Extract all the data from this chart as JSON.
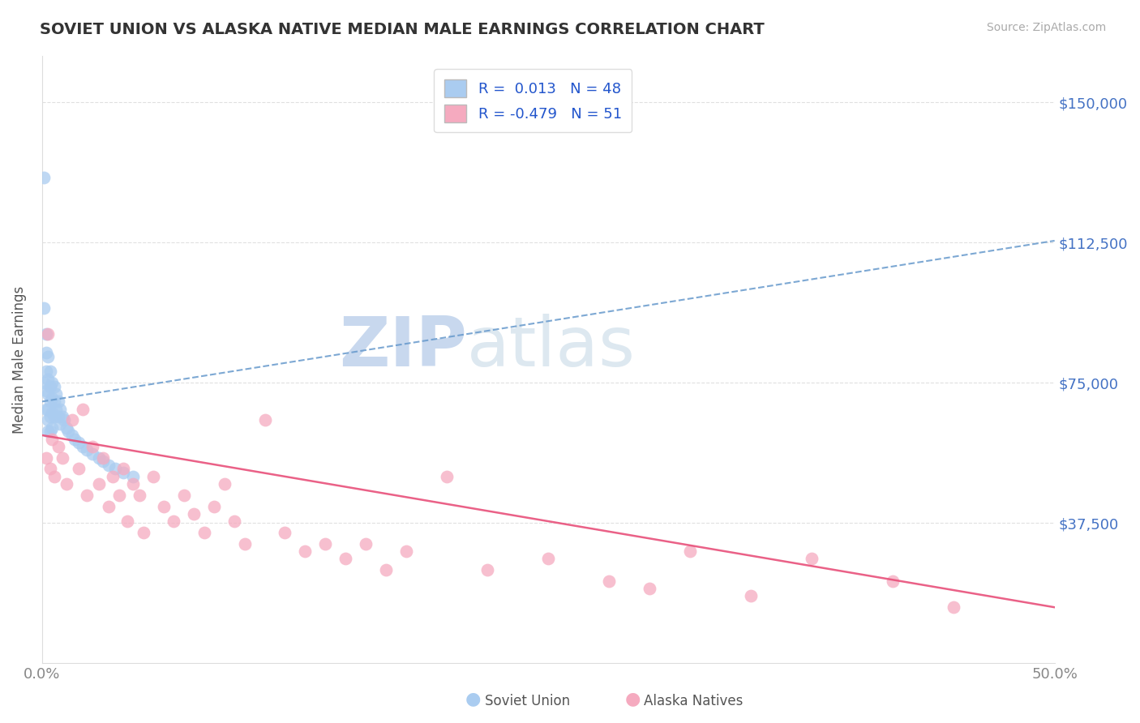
{
  "title": "SOVIET UNION VS ALASKA NATIVE MEDIAN MALE EARNINGS CORRELATION CHART",
  "source": "Source: ZipAtlas.com",
  "ylabel": "Median Male Earnings",
  "xlim": [
    0.0,
    0.5
  ],
  "ylim": [
    0,
    162500
  ],
  "ytick_labels": [
    "$37,500",
    "$75,000",
    "$112,500",
    "$150,000"
  ],
  "ytick_values": [
    37500,
    75000,
    112500,
    150000
  ],
  "r_soviet": 0.013,
  "n_soviet": 48,
  "r_alaska": -0.479,
  "n_alaska": 51,
  "background_color": "#ffffff",
  "grid_color": "#cccccc",
  "scatter_blue_color": "#aaccf0",
  "scatter_pink_color": "#f5aabf",
  "line_blue_color": "#6699cc",
  "line_pink_color": "#e8507a",
  "watermark_color": "#dde8f5",
  "title_color": "#333333",
  "axis_label_color": "#555555",
  "tick_label_color": "#888888",
  "right_tick_color": "#4472c4",
  "soviet_points_x": [
    0.001,
    0.001,
    0.001,
    0.002,
    0.002,
    0.002,
    0.002,
    0.002,
    0.003,
    0.003,
    0.003,
    0.003,
    0.003,
    0.003,
    0.004,
    0.004,
    0.004,
    0.004,
    0.004,
    0.005,
    0.005,
    0.005,
    0.005,
    0.006,
    0.006,
    0.006,
    0.007,
    0.007,
    0.008,
    0.008,
    0.009,
    0.009,
    0.01,
    0.011,
    0.012,
    0.013,
    0.015,
    0.016,
    0.018,
    0.02,
    0.022,
    0.025,
    0.028,
    0.03,
    0.033,
    0.036,
    0.04,
    0.045
  ],
  "soviet_points_y": [
    130000,
    95000,
    75000,
    88000,
    83000,
    78000,
    73000,
    68000,
    82000,
    76000,
    72000,
    68000,
    65000,
    62000,
    78000,
    74000,
    70000,
    66000,
    62000,
    75000,
    71000,
    67000,
    63000,
    74000,
    70000,
    66000,
    72000,
    68000,
    70000,
    66000,
    68000,
    64000,
    66000,
    65000,
    63000,
    62000,
    61000,
    60000,
    59000,
    58000,
    57000,
    56000,
    55000,
    54000,
    53000,
    52000,
    51000,
    50000
  ],
  "alaska_points_x": [
    0.002,
    0.003,
    0.004,
    0.005,
    0.006,
    0.008,
    0.01,
    0.012,
    0.015,
    0.018,
    0.02,
    0.022,
    0.025,
    0.028,
    0.03,
    0.033,
    0.035,
    0.038,
    0.04,
    0.042,
    0.045,
    0.048,
    0.05,
    0.055,
    0.06,
    0.065,
    0.07,
    0.075,
    0.08,
    0.085,
    0.09,
    0.095,
    0.1,
    0.11,
    0.12,
    0.13,
    0.14,
    0.15,
    0.16,
    0.17,
    0.18,
    0.2,
    0.22,
    0.25,
    0.28,
    0.3,
    0.32,
    0.35,
    0.38,
    0.42,
    0.45
  ],
  "alaska_points_y": [
    55000,
    88000,
    52000,
    60000,
    50000,
    58000,
    55000,
    48000,
    65000,
    52000,
    68000,
    45000,
    58000,
    48000,
    55000,
    42000,
    50000,
    45000,
    52000,
    38000,
    48000,
    45000,
    35000,
    50000,
    42000,
    38000,
    45000,
    40000,
    35000,
    42000,
    48000,
    38000,
    32000,
    65000,
    35000,
    30000,
    32000,
    28000,
    32000,
    25000,
    30000,
    50000,
    25000,
    28000,
    22000,
    20000,
    30000,
    18000,
    28000,
    22000,
    15000
  ]
}
